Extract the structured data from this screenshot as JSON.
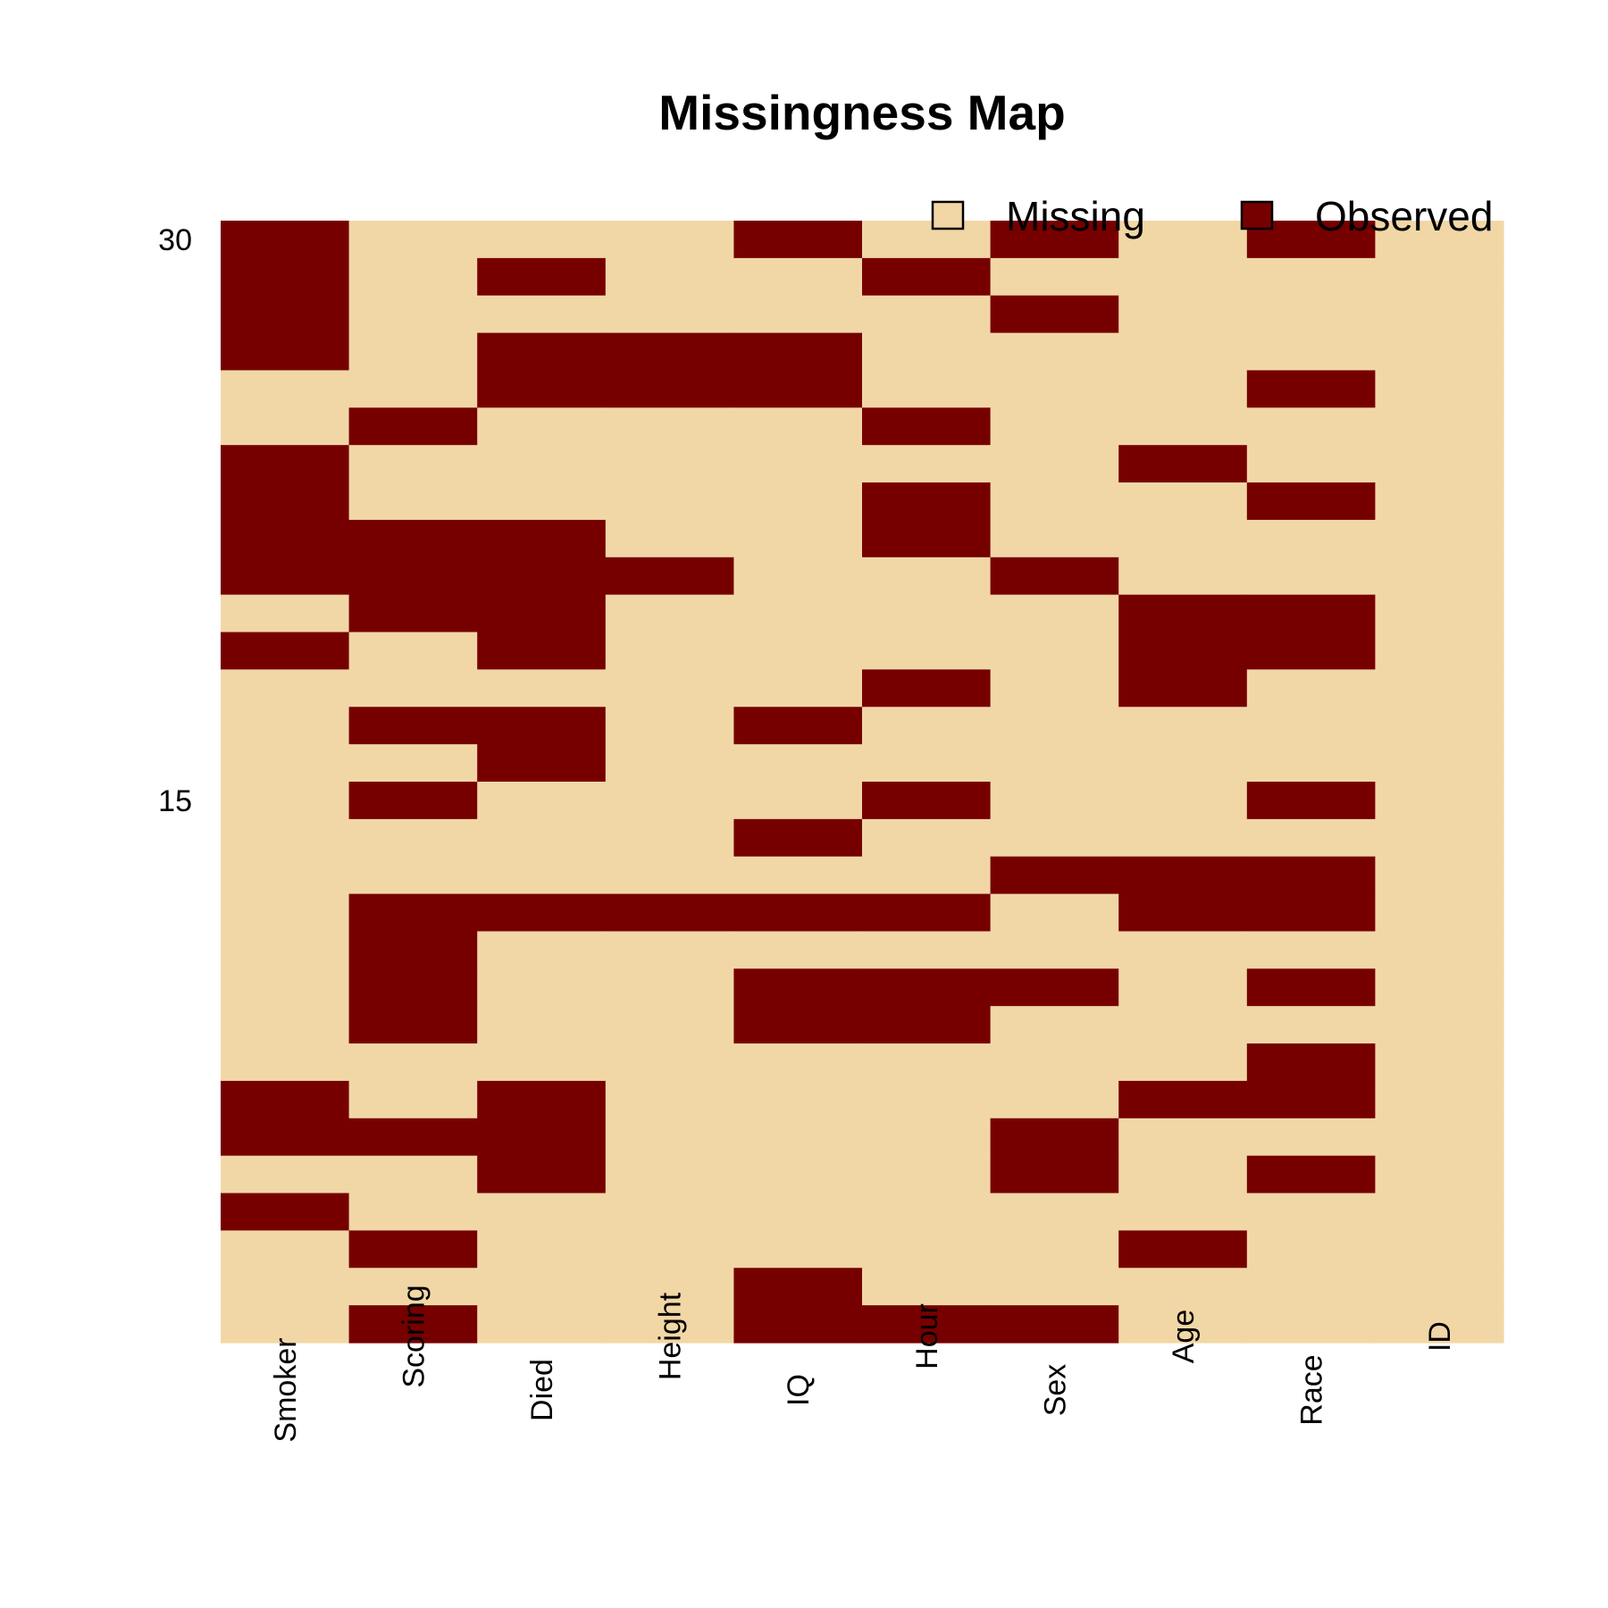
{
  "chart_data": {
    "type": "heatmap",
    "title": "Missingness Map",
    "xlabel": "",
    "ylabel": "",
    "columns": [
      "Smoker",
      "Scoring",
      "Died",
      "Height",
      "IQ",
      "Hour",
      "Sex",
      "Age",
      "Race",
      "ID"
    ],
    "rows": 30,
    "y_ticks": [
      30,
      15
    ],
    "legend": {
      "placement": "top-right",
      "items": [
        {
          "name": "Missing",
          "color": "#F2D7A6"
        },
        {
          "name": "Observed",
          "color": "#760000"
        }
      ]
    },
    "colors": {
      "missing": "#F2D7A6",
      "observed": "#760000"
    },
    "missing_matrix_rows_top_to_bottom": [
      "0111010101",
      "0101101111",
      "0111110111",
      "0100011111",
      "1100011101",
      "1011101111",
      "0111111011",
      "0111101101",
      "0001101111",
      "0000110111",
      "1001111001",
      "0101111001",
      "1111101011",
      "1001011111",
      "1101111111",
      "1011101101",
      "1111011111",
      "1111110001",
      "1000001001",
      "1011111111",
      "1011000101",
      "1011001111",
      "1111111101",
      "0101111001",
      "0001110111",
      "1101110101",
      "0111111111",
      "1011111011",
      "1111011111",
      "1011000111"
    ]
  }
}
